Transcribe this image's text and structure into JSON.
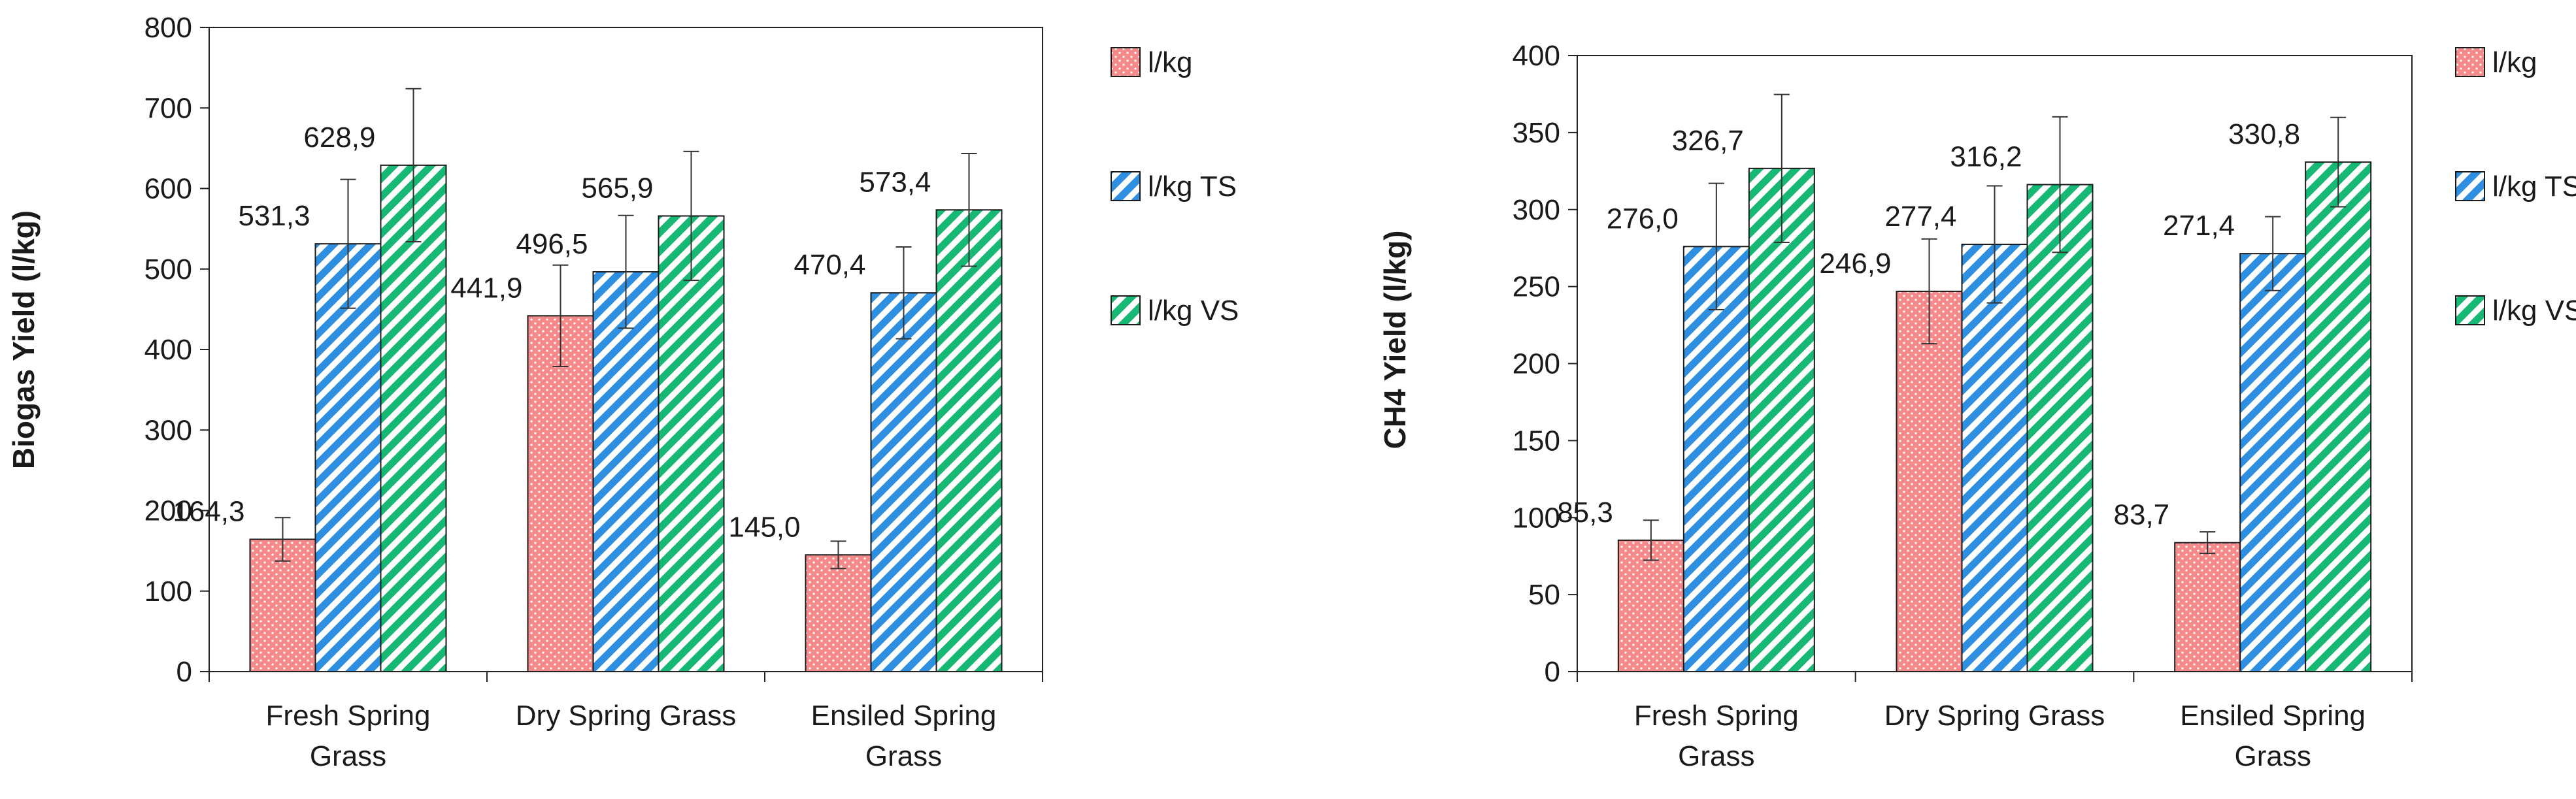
{
  "chart_data": [
    {
      "type": "bar",
      "title": "",
      "xlabel": "",
      "ylabel": "Biogas Yield (l/kg)",
      "ylim": [
        0,
        800
      ],
      "ytick_step": 100,
      "categories": [
        [
          "Fresh Spring",
          "Grass"
        ],
        [
          "Dry Spring Grass"
        ],
        [
          "Ensiled Spring",
          "Grass"
        ]
      ],
      "series": [
        {
          "name": "l/kg",
          "values": [
            164.3,
            441.9,
            145.0
          ],
          "labels": [
            "164,3",
            "441,9",
            "145,0"
          ],
          "errors": [
            27,
            63,
            17
          ],
          "color": "#f48a8a",
          "pattern": "dots"
        },
        {
          "name": "l/kg TS",
          "values": [
            531.3,
            496.5,
            470.4
          ],
          "labels": [
            "531,3",
            "496,5",
            "470,4"
          ],
          "errors": [
            80,
            70,
            57
          ],
          "color": "#2e8fe0",
          "pattern": "diag"
        },
        {
          "name": "l/kg VS",
          "values": [
            628.9,
            565.9,
            573.4
          ],
          "labels": [
            "628,9",
            "565,9",
            "573,4"
          ],
          "errors": [
            95,
            80,
            70
          ],
          "color": "#16b874",
          "pattern": "diag"
        }
      ],
      "legend_position": "right"
    },
    {
      "type": "bar",
      "title": "",
      "xlabel": "",
      "ylabel": "CH4 Yield (l/kg)",
      "ylim": [
        0,
        400
      ],
      "ytick_step": 50,
      "categories": [
        [
          "Fresh Spring",
          "Grass"
        ],
        [
          "Dry Spring Grass"
        ],
        [
          "Ensiled Spring",
          "Grass"
        ]
      ],
      "series": [
        {
          "name": "l/kg",
          "values": [
            85.3,
            246.9,
            83.7
          ],
          "labels": [
            "85,3",
            "246,9",
            "83,7"
          ],
          "errors": [
            13,
            34,
            7
          ],
          "color": "#f48a8a",
          "pattern": "dots"
        },
        {
          "name": "l/kg TS",
          "values": [
            276.0,
            277.4,
            271.4
          ],
          "labels": [
            "276,0",
            "277,4",
            "271,4"
          ],
          "errors": [
            41,
            38,
            24
          ],
          "color": "#2e8fe0",
          "pattern": "diag"
        },
        {
          "name": "l/kg VS",
          "values": [
            326.7,
            316.2,
            330.8
          ],
          "labels": [
            "326,7",
            "316,2",
            "330,8"
          ],
          "errors": [
            48,
            44,
            29
          ],
          "color": "#16b874",
          "pattern": "diag"
        }
      ],
      "legend_position": "right"
    }
  ]
}
